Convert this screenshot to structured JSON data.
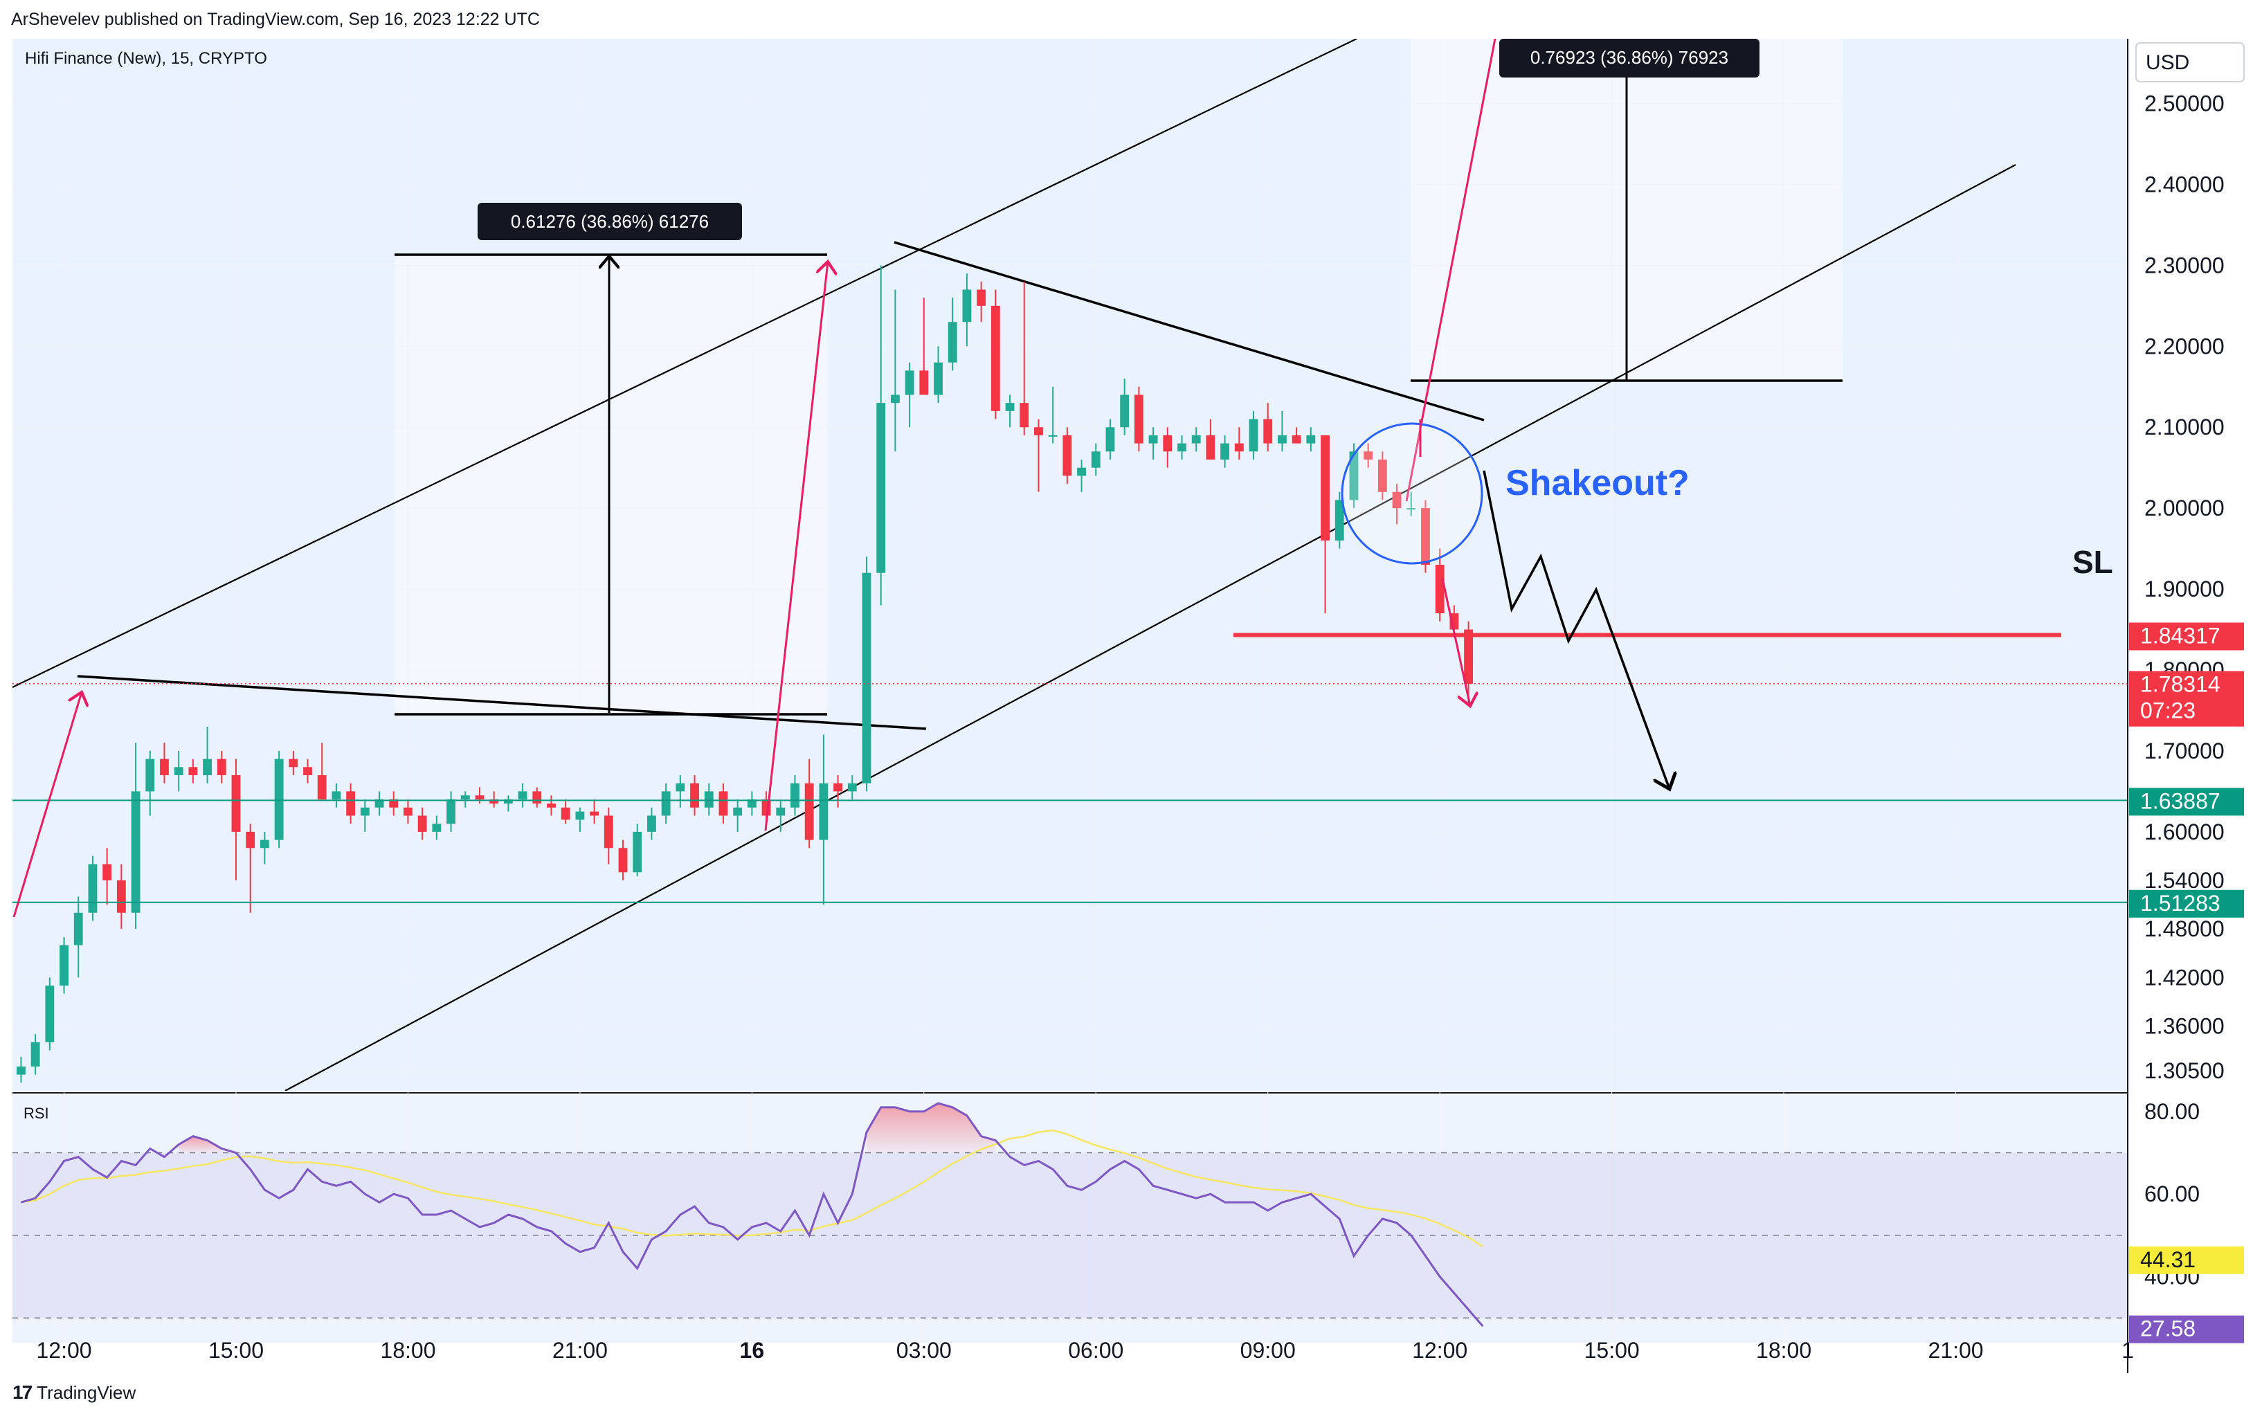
{
  "header": {
    "publisher": "ArShevelev published on TradingView.com, Sep 16, 2023 12:22 UTC"
  },
  "footer": {
    "brand": "TradingView",
    "logo_icon": "tradingview-logo-icon"
  },
  "chart_data": [
    {
      "type": "candlestick",
      "symbol_title": "Hifi Finance (New), 15, CRYPTO",
      "currency_button": "USD",
      "price_scale": {
        "ticks": [
          "2.50000",
          "2.40000",
          "2.30000",
          "2.20000",
          "2.10000",
          "2.00000",
          "1.90000",
          "1.80000",
          "1.70000",
          "1.60000",
          "1.54000",
          "1.48000",
          "1.42000",
          "1.36000",
          "1.30500"
        ],
        "tick_values": [
          2.5,
          2.4,
          2.3,
          2.2,
          2.1,
          2.0,
          1.9,
          1.8,
          1.7,
          1.6,
          1.54,
          1.48,
          1.42,
          1.36,
          1.305
        ],
        "range": [
          1.28,
          2.58
        ]
      },
      "time_axis": {
        "labels": [
          "12:00",
          "15:00",
          "18:00",
          "21:00",
          "16",
          "03:00",
          "06:00",
          "09:00",
          "12:00",
          "15:00",
          "18:00",
          "21:00",
          "1"
        ],
        "label_positions_hours": [
          0,
          3,
          6,
          9,
          12,
          15,
          18,
          21,
          24,
          27,
          30,
          33,
          36
        ],
        "bold_label": "16",
        "range_hours": [
          -0.9,
          36
        ]
      },
      "colors": {
        "up": "#22ab94",
        "down": "#f23645",
        "background": "#e9f2fd",
        "grid": "#f0f3fa"
      },
      "candles_start_hour": -0.75,
      "candle_interval_minutes": 15,
      "candles": [
        {
          "o": 1.3,
          "h": 1.322,
          "l": 1.29,
          "c": 1.31
        },
        {
          "o": 1.31,
          "h": 1.35,
          "l": 1.3,
          "c": 1.34
        },
        {
          "o": 1.34,
          "h": 1.42,
          "l": 1.33,
          "c": 1.41
        },
        {
          "o": 1.41,
          "h": 1.47,
          "l": 1.4,
          "c": 1.46
        },
        {
          "o": 1.46,
          "h": 1.52,
          "l": 1.42,
          "c": 1.5
        },
        {
          "o": 1.5,
          "h": 1.57,
          "l": 1.49,
          "c": 1.56
        },
        {
          "o": 1.56,
          "h": 1.58,
          "l": 1.51,
          "c": 1.54
        },
        {
          "o": 1.54,
          "h": 1.56,
          "l": 1.48,
          "c": 1.5
        },
        {
          "o": 1.5,
          "h": 1.71,
          "l": 1.48,
          "c": 1.65
        },
        {
          "o": 1.65,
          "h": 1.7,
          "l": 1.62,
          "c": 1.69
        },
        {
          "o": 1.69,
          "h": 1.71,
          "l": 1.66,
          "c": 1.67
        },
        {
          "o": 1.67,
          "h": 1.7,
          "l": 1.65,
          "c": 1.68
        },
        {
          "o": 1.68,
          "h": 1.69,
          "l": 1.66,
          "c": 1.67
        },
        {
          "o": 1.67,
          "h": 1.73,
          "l": 1.66,
          "c": 1.69
        },
        {
          "o": 1.69,
          "h": 1.7,
          "l": 1.66,
          "c": 1.67
        },
        {
          "o": 1.67,
          "h": 1.69,
          "l": 1.54,
          "c": 1.6
        },
        {
          "o": 1.6,
          "h": 1.61,
          "l": 1.5,
          "c": 1.58
        },
        {
          "o": 1.58,
          "h": 1.6,
          "l": 1.56,
          "c": 1.59
        },
        {
          "o": 1.59,
          "h": 1.7,
          "l": 1.58,
          "c": 1.69
        },
        {
          "o": 1.69,
          "h": 1.7,
          "l": 1.67,
          "c": 1.68
        },
        {
          "o": 1.68,
          "h": 1.69,
          "l": 1.66,
          "c": 1.67
        },
        {
          "o": 1.67,
          "h": 1.71,
          "l": 1.64,
          "c": 1.64
        },
        {
          "o": 1.64,
          "h": 1.66,
          "l": 1.63,
          "c": 1.65
        },
        {
          "o": 1.65,
          "h": 1.66,
          "l": 1.61,
          "c": 1.62
        },
        {
          "o": 1.62,
          "h": 1.64,
          "l": 1.6,
          "c": 1.63
        },
        {
          "o": 1.63,
          "h": 1.65,
          "l": 1.62,
          "c": 1.64
        },
        {
          "o": 1.64,
          "h": 1.65,
          "l": 1.62,
          "c": 1.63
        },
        {
          "o": 1.63,
          "h": 1.64,
          "l": 1.61,
          "c": 1.62
        },
        {
          "o": 1.62,
          "h": 1.63,
          "l": 1.59,
          "c": 1.6
        },
        {
          "o": 1.6,
          "h": 1.62,
          "l": 1.59,
          "c": 1.61
        },
        {
          "o": 1.61,
          "h": 1.65,
          "l": 1.6,
          "c": 1.64
        },
        {
          "o": 1.64,
          "h": 1.65,
          "l": 1.63,
          "c": 1.645
        },
        {
          "o": 1.645,
          "h": 1.655,
          "l": 1.635,
          "c": 1.64
        },
        {
          "o": 1.64,
          "h": 1.65,
          "l": 1.63,
          "c": 1.635
        },
        {
          "o": 1.635,
          "h": 1.645,
          "l": 1.625,
          "c": 1.64
        },
        {
          "o": 1.64,
          "h": 1.66,
          "l": 1.63,
          "c": 1.65
        },
        {
          "o": 1.65,
          "h": 1.655,
          "l": 1.63,
          "c": 1.635
        },
        {
          "o": 1.635,
          "h": 1.645,
          "l": 1.62,
          "c": 1.63
        },
        {
          "o": 1.63,
          "h": 1.64,
          "l": 1.61,
          "c": 1.615
        },
        {
          "o": 1.615,
          "h": 1.63,
          "l": 1.6,
          "c": 1.625
        },
        {
          "o": 1.625,
          "h": 1.64,
          "l": 1.61,
          "c": 1.62
        },
        {
          "o": 1.62,
          "h": 1.63,
          "l": 1.56,
          "c": 1.58
        },
        {
          "o": 1.58,
          "h": 1.59,
          "l": 1.54,
          "c": 1.55
        },
        {
          "o": 1.55,
          "h": 1.61,
          "l": 1.545,
          "c": 1.6
        },
        {
          "o": 1.6,
          "h": 1.63,
          "l": 1.59,
          "c": 1.62
        },
        {
          "o": 1.62,
          "h": 1.66,
          "l": 1.61,
          "c": 1.65
        },
        {
          "o": 1.65,
          "h": 1.67,
          "l": 1.63,
          "c": 1.66
        },
        {
          "o": 1.66,
          "h": 1.67,
          "l": 1.62,
          "c": 1.63
        },
        {
          "o": 1.63,
          "h": 1.66,
          "l": 1.62,
          "c": 1.65
        },
        {
          "o": 1.65,
          "h": 1.66,
          "l": 1.61,
          "c": 1.62
        },
        {
          "o": 1.62,
          "h": 1.64,
          "l": 1.6,
          "c": 1.63
        },
        {
          "o": 1.63,
          "h": 1.65,
          "l": 1.62,
          "c": 1.64
        },
        {
          "o": 1.64,
          "h": 1.65,
          "l": 1.61,
          "c": 1.62
        },
        {
          "o": 1.62,
          "h": 1.64,
          "l": 1.6,
          "c": 1.63
        },
        {
          "o": 1.63,
          "h": 1.67,
          "l": 1.62,
          "c": 1.66
        },
        {
          "o": 1.66,
          "h": 1.69,
          "l": 1.58,
          "c": 1.59
        },
        {
          "o": 1.59,
          "h": 1.72,
          "l": 1.51,
          "c": 1.66
        },
        {
          "o": 1.66,
          "h": 1.67,
          "l": 1.63,
          "c": 1.65
        },
        {
          "o": 1.65,
          "h": 1.67,
          "l": 1.64,
          "c": 1.66
        },
        {
          "o": 1.66,
          "h": 1.94,
          "l": 1.65,
          "c": 1.92
        },
        {
          "o": 1.92,
          "h": 2.3,
          "l": 1.88,
          "c": 2.13
        },
        {
          "o": 2.13,
          "h": 2.27,
          "l": 2.07,
          "c": 2.14
        },
        {
          "o": 2.14,
          "h": 2.18,
          "l": 2.1,
          "c": 2.17
        },
        {
          "o": 2.17,
          "h": 2.26,
          "l": 2.15,
          "c": 2.14
        },
        {
          "o": 2.14,
          "h": 2.2,
          "l": 2.13,
          "c": 2.18
        },
        {
          "o": 2.18,
          "h": 2.26,
          "l": 2.17,
          "c": 2.23
        },
        {
          "o": 2.23,
          "h": 2.29,
          "l": 2.2,
          "c": 2.27
        },
        {
          "o": 2.27,
          "h": 2.28,
          "l": 2.23,
          "c": 2.25
        },
        {
          "o": 2.25,
          "h": 2.27,
          "l": 2.11,
          "c": 2.12
        },
        {
          "o": 2.12,
          "h": 2.14,
          "l": 2.1,
          "c": 2.13
        },
        {
          "o": 2.13,
          "h": 2.28,
          "l": 2.09,
          "c": 2.1
        },
        {
          "o": 2.1,
          "h": 2.11,
          "l": 2.02,
          "c": 2.09
        },
        {
          "o": 2.09,
          "h": 2.15,
          "l": 2.08,
          "c": 2.09
        },
        {
          "o": 2.09,
          "h": 2.1,
          "l": 2.03,
          "c": 2.04
        },
        {
          "o": 2.04,
          "h": 2.06,
          "l": 2.02,
          "c": 2.05
        },
        {
          "o": 2.05,
          "h": 2.08,
          "l": 2.04,
          "c": 2.07
        },
        {
          "o": 2.07,
          "h": 2.11,
          "l": 2.06,
          "c": 2.1
        },
        {
          "o": 2.1,
          "h": 2.16,
          "l": 2.09,
          "c": 2.14
        },
        {
          "o": 2.14,
          "h": 2.15,
          "l": 2.07,
          "c": 2.08
        },
        {
          "o": 2.08,
          "h": 2.1,
          "l": 2.06,
          "c": 2.09
        },
        {
          "o": 2.09,
          "h": 2.1,
          "l": 2.05,
          "c": 2.07
        },
        {
          "o": 2.07,
          "h": 2.09,
          "l": 2.06,
          "c": 2.08
        },
        {
          "o": 2.08,
          "h": 2.1,
          "l": 2.07,
          "c": 2.09
        },
        {
          "o": 2.09,
          "h": 2.11,
          "l": 2.06,
          "c": 2.06
        },
        {
          "o": 2.06,
          "h": 2.09,
          "l": 2.05,
          "c": 2.08
        },
        {
          "o": 2.08,
          "h": 2.1,
          "l": 2.06,
          "c": 2.07
        },
        {
          "o": 2.07,
          "h": 2.12,
          "l": 2.06,
          "c": 2.11
        },
        {
          "o": 2.11,
          "h": 2.13,
          "l": 2.07,
          "c": 2.08
        },
        {
          "o": 2.08,
          "h": 2.12,
          "l": 2.07,
          "c": 2.09
        },
        {
          "o": 2.09,
          "h": 2.1,
          "l": 2.08,
          "c": 2.08
        },
        {
          "o": 2.08,
          "h": 2.1,
          "l": 2.07,
          "c": 2.09
        },
        {
          "o": 2.09,
          "h": 2.09,
          "l": 1.87,
          "c": 1.96
        },
        {
          "o": 1.96,
          "h": 2.02,
          "l": 1.95,
          "c": 2.01
        },
        {
          "o": 2.01,
          "h": 2.08,
          "l": 2.0,
          "c": 2.07
        },
        {
          "o": 2.07,
          "h": 2.08,
          "l": 2.05,
          "c": 2.06
        },
        {
          "o": 2.06,
          "h": 2.07,
          "l": 2.01,
          "c": 2.02
        },
        {
          "o": 2.02,
          "h": 2.03,
          "l": 1.98,
          "c": 2.0
        },
        {
          "o": 2.0,
          "h": 2.02,
          "l": 1.99,
          "c": 2.0
        },
        {
          "o": 2.0,
          "h": 2.01,
          "l": 1.92,
          "c": 1.93
        },
        {
          "o": 1.93,
          "h": 1.95,
          "l": 1.86,
          "c": 1.87
        },
        {
          "o": 1.87,
          "h": 1.88,
          "l": 1.84,
          "c": 1.85
        },
        {
          "o": 1.85,
          "h": 1.86,
          "l": 1.76,
          "c": 1.783
        }
      ],
      "levels": [
        {
          "name": "SL",
          "value": 1.84317,
          "label": "1.84317",
          "color": "#f23645"
        },
        {
          "name": "current",
          "value": 1.78314,
          "label": "1.78314",
          "countdown": "07:23",
          "color": "#f23645"
        },
        {
          "name": "support-upper",
          "value": 1.63887,
          "label": "1.63887",
          "color": "#089981"
        },
        {
          "name": "support-lower",
          "value": 1.51283,
          "label": "1.51283",
          "color": "#089981"
        }
      ],
      "annotations": {
        "shakeout_text": "Shakeout?",
        "sl_text": "SL",
        "measure_1": "0.61276 (36.86%) 61276",
        "measure_2": "0.76923 (36.86%) 76923"
      }
    },
    {
      "type": "line",
      "indicator": "RSI",
      "range": [
        24,
        84
      ],
      "ticks": [
        "80.00",
        "60.00",
        "40.00"
      ],
      "tick_values": [
        80,
        60,
        40
      ],
      "bands": [
        70,
        50,
        30
      ],
      "rsi_value": "27.58",
      "rsi_value_num": 27.58,
      "ma_value": "44.31",
      "ma_value_num": 44.31,
      "colors": {
        "rsi": "#7e57c2",
        "ma": "#f5e663",
        "band": "#7e57c2"
      },
      "rsi": [
        58,
        59,
        63,
        68,
        69,
        66,
        64,
        68,
        67,
        71,
        69,
        72,
        74,
        73,
        71,
        70,
        66,
        61,
        59,
        61,
        66,
        63,
        62,
        63,
        60,
        58,
        60,
        59,
        55,
        55,
        56,
        54,
        52,
        53,
        55,
        54,
        52,
        51,
        48,
        46,
        47,
        53,
        46,
        42,
        49,
        51,
        55,
        57,
        53,
        52,
        49,
        52,
        53,
        51,
        56,
        50,
        60,
        53,
        60,
        75,
        81,
        81,
        80,
        80,
        82,
        81,
        79,
        74,
        73,
        69,
        67,
        68,
        66,
        62,
        61,
        63,
        66,
        68,
        66,
        62,
        61,
        60,
        59,
        60,
        58,
        58,
        58,
        56,
        58,
        59,
        60,
        57,
        54,
        45,
        50,
        54,
        53,
        50,
        45,
        40,
        36,
        32,
        28
      ]
    }
  ]
}
